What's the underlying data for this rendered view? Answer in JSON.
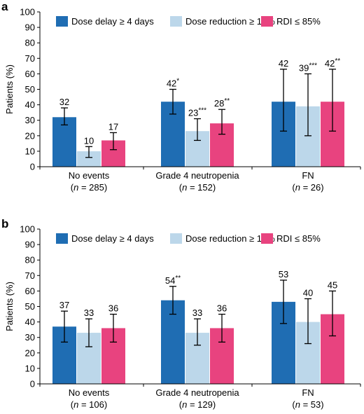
{
  "colors": {
    "dose_delay": "#1f6db3",
    "dose_reduction": "#bcd7ea",
    "rdi": "#e8437f",
    "axis": "#000000"
  },
  "chart_data": [
    {
      "panel": "a",
      "type": "bar",
      "ylabel": "Patients (%)",
      "ylim": [
        0,
        100
      ],
      "yticks": [
        "0",
        "10",
        "20",
        "30",
        "40",
        "50",
        "60",
        "70",
        "80",
        "90",
        "100"
      ],
      "legend": {
        "placement": "top",
        "entries": [
          "Dose delay ≥ 4 days",
          "Dose reduction ≥ 10%",
          "RDI ≤ 85%"
        ]
      },
      "categories": [
        {
          "line1": "No events",
          "n_text": "n",
          "n_rest": " = 285)"
        },
        {
          "line1": "Grade 4 neutropenia",
          "n_text": "n",
          "n_rest": " = 152)"
        },
        {
          "line1": "FN",
          "n_text": "n",
          "n_rest": " = 26)"
        }
      ],
      "series": [
        {
          "name": "Dose delay ≥ 4 days",
          "color": "#1f6db3",
          "values": [
            32,
            42,
            42
          ],
          "err_low": [
            27,
            34,
            23
          ],
          "err_high": [
            38,
            50,
            63
          ],
          "labels": [
            "32",
            "42*",
            "42"
          ]
        },
        {
          "name": "Dose reduction ≥ 10%",
          "color": "#bcd7ea",
          "values": [
            10,
            23,
            39
          ],
          "err_low": [
            6,
            17,
            20
          ],
          "err_high": [
            13,
            31,
            60
          ],
          "labels": [
            "10",
            "23***",
            "39***"
          ]
        },
        {
          "name": "RDI ≤ 85%",
          "color": "#e8437f",
          "values": [
            17,
            28,
            42
          ],
          "err_low": [
            11,
            21,
            23
          ],
          "err_high": [
            22,
            37,
            63
          ],
          "labels": [
            "17",
            "28**",
            "42**"
          ]
        }
      ]
    },
    {
      "panel": "b",
      "type": "bar",
      "ylabel": "Patients (%)",
      "ylim": [
        0,
        100
      ],
      "yticks": [
        "0",
        "10",
        "20",
        "30",
        "40",
        "50",
        "60",
        "70",
        "80",
        "90",
        "100"
      ],
      "legend": {
        "placement": "top",
        "entries": [
          "Dose delay ≥ 4 days",
          "Dose reduction ≥ 10%",
          "RDI ≤ 85%"
        ]
      },
      "categories": [
        {
          "line1": "No events",
          "n_text": "n",
          "n_rest": " = 106)"
        },
        {
          "line1": "Grade 4 neutropenia",
          "n_text": "n",
          "n_rest": " = 129)"
        },
        {
          "line1": "FN",
          "n_text": "n",
          "n_rest": " = 53)"
        }
      ],
      "series": [
        {
          "name": "Dose delay ≥ 4 days",
          "color": "#1f6db3",
          "values": [
            37,
            54,
            53
          ],
          "err_low": [
            27,
            45,
            39
          ],
          "err_high": [
            47,
            63,
            67
          ],
          "labels": [
            "37",
            "54**",
            "53"
          ]
        },
        {
          "name": "Dose reduction ≥ 10%",
          "color": "#bcd7ea",
          "values": [
            33,
            33,
            40
          ],
          "err_low": [
            24,
            25,
            26
          ],
          "err_high": [
            42,
            42,
            55
          ],
          "labels": [
            "33",
            "33",
            "40"
          ]
        },
        {
          "name": "RDI ≤ 85%",
          "color": "#e8437f",
          "values": [
            36,
            36,
            45
          ],
          "err_low": [
            27,
            27,
            31
          ],
          "err_high": [
            45,
            45,
            60
          ],
          "labels": [
            "36",
            "36",
            "45"
          ]
        }
      ]
    }
  ]
}
